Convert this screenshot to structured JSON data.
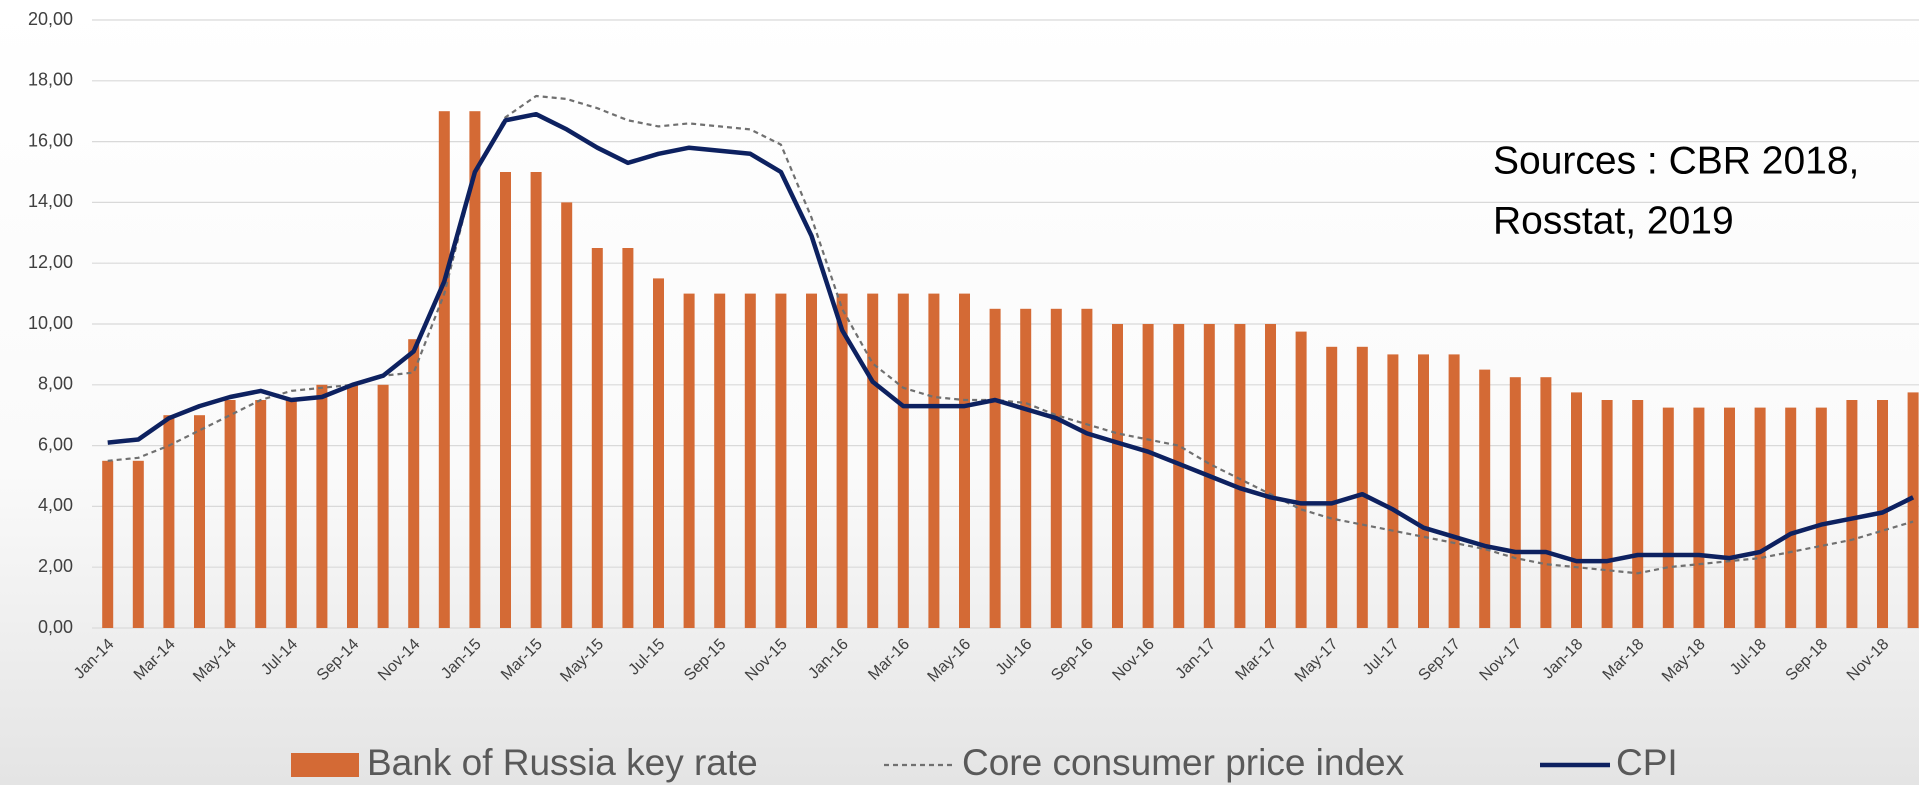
{
  "chart_data": {
    "type": "bar_line",
    "annotation": [
      "Sources : CBR 2018,",
      "Rosstat, 2019"
    ],
    "categories": [
      "Jan-14",
      null,
      "Mar-14",
      null,
      "May-14",
      null,
      "Jul-14",
      null,
      "Sep-14",
      null,
      "Nov-14",
      null,
      "Jan-15",
      null,
      "Mar-15",
      null,
      "May-15",
      null,
      "Jul-15",
      null,
      "Sep-15",
      null,
      "Nov-15",
      null,
      "Jan-16",
      null,
      "Mar-16",
      null,
      "May-16",
      null,
      "Jul-16",
      null,
      "Sep-16",
      null,
      "Nov-16",
      null,
      "Jan-17",
      null,
      "Mar-17",
      null,
      "May-17",
      null,
      "Jul-17",
      null,
      "Sep-17",
      null,
      "Nov-17",
      null,
      "Jan-18",
      null,
      "Mar-18",
      null,
      "May-18",
      null,
      "Jul-18",
      null,
      "Sep-18",
      null,
      "Nov-18",
      null
    ],
    "series": [
      {
        "name": "Bank of Russia key rate",
        "color": "#d46a35",
        "kind": "bar",
        "values": [
          5.5,
          5.5,
          7,
          7,
          7.5,
          7.5,
          7.5,
          8,
          8,
          8,
          9.5,
          17,
          17,
          15,
          15,
          14,
          12.5,
          12.5,
          11.5,
          11,
          11,
          11,
          11,
          11,
          11,
          11,
          11,
          11,
          11,
          10.5,
          10.5,
          10.5,
          10.5,
          10,
          10,
          10,
          10,
          10,
          10,
          9.75,
          9.25,
          9.25,
          9,
          9,
          9,
          8.5,
          8.25,
          8.25,
          7.75,
          7.5,
          7.5,
          7.25,
          7.25,
          7.25,
          7.25,
          7.25,
          7.25,
          7.5,
          7.5,
          7.75
        ]
      },
      {
        "name": "Core consumer price index",
        "color": "#707070",
        "kind": "dashed-line",
        "values": [
          5.5,
          5.6,
          6.0,
          6.5,
          7.0,
          7.5,
          7.8,
          7.9,
          8.0,
          8.3,
          8.4,
          11.0,
          15.0,
          16.8,
          17.5,
          17.4,
          17.1,
          16.7,
          16.5,
          16.6,
          16.5,
          16.4,
          15.9,
          13.5,
          10.5,
          8.7,
          7.9,
          7.6,
          7.5,
          7.5,
          7.4,
          7.0,
          6.7,
          6.4,
          6.2,
          6.0,
          5.4,
          4.9,
          4.4,
          3.9,
          3.6,
          3.4,
          3.2,
          3.0,
          2.8,
          2.6,
          2.3,
          2.1,
          2.0,
          1.9,
          1.8,
          2.0,
          2.1,
          2.2,
          2.3,
          2.5,
          2.7,
          2.9,
          3.2,
          3.5
        ]
      },
      {
        "name": "CPI",
        "color": "#0d2160",
        "kind": "line",
        "values": [
          6.1,
          6.2,
          6.9,
          7.3,
          7.6,
          7.8,
          7.5,
          7.6,
          8.0,
          8.3,
          9.1,
          11.4,
          15.0,
          16.7,
          16.9,
          16.4,
          15.8,
          15.3,
          15.6,
          15.8,
          15.7,
          15.6,
          15.0,
          12.9,
          9.8,
          8.1,
          7.3,
          7.3,
          7.3,
          7.5,
          7.2,
          6.9,
          6.4,
          6.1,
          5.8,
          5.4,
          5.0,
          4.6,
          4.3,
          4.1,
          4.1,
          4.4,
          3.9,
          3.3,
          3.0,
          2.7,
          2.5,
          2.5,
          2.2,
          2.2,
          2.4,
          2.4,
          2.4,
          2.3,
          2.5,
          3.1,
          3.4,
          3.6,
          3.8,
          4.3
        ]
      }
    ],
    "ylim": [
      0,
      20
    ],
    "yticks": [
      {
        "value": 0,
        "label": "0,00"
      },
      {
        "value": 2,
        "label": "2,00"
      },
      {
        "value": 4,
        "label": "4,00"
      },
      {
        "value": 6,
        "label": "6,00"
      },
      {
        "value": 8,
        "label": "8,00"
      },
      {
        "value": 10,
        "label": "10,00"
      },
      {
        "value": 12,
        "label": "12,00"
      },
      {
        "value": 14,
        "label": "14,00"
      },
      {
        "value": 16,
        "label": "16,00"
      },
      {
        "value": 18,
        "label": "18,00"
      },
      {
        "value": 20,
        "label": "20,00"
      }
    ],
    "grid": true,
    "legend": "bottom"
  }
}
